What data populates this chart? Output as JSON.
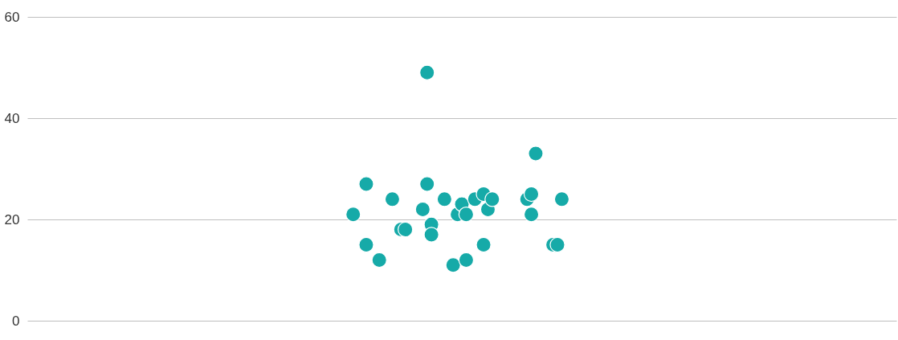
{
  "chart_data": {
    "type": "scatter",
    "categories": [
      null,
      null,
      null,
      null,
      null,
      null,
      null,
      null,
      null,
      null,
      null,
      null,
      null,
      null,
      null,
      null,
      null,
      null,
      null,
      null,
      null,
      null,
      null,
      null,
      null,
      null,
      null,
      null,
      null,
      null,
      null,
      null,
      null,
      null,
      null,
      null,
      null,
      null,
      null,
      null,
      null,
      null,
      null,
      null,
      null,
      null,
      null,
      null,
      null,
      null,
      null,
      null,
      null,
      null,
      null,
      null,
      null,
      null,
      null,
      null,
      null,
      null,
      null,
      null,
      null,
      null,
      null,
      null,
      null,
      null,
      null,
      null,
      null,
      null,
      null,
      null,
      null,
      null,
      null,
      null,
      null,
      null,
      null,
      null,
      null,
      null,
      null,
      null,
      null,
      null,
      null,
      null,
      null,
      null,
      null,
      null,
      null,
      null,
      null,
      null,
      null,
      null,
      null,
      null,
      null,
      null,
      null,
      null,
      null,
      null,
      null,
      null,
      null,
      null,
      null,
      null,
      null,
      null,
      null,
      null,
      null,
      null,
      null,
      null,
      null,
      null,
      null,
      null,
      null,
      null,
      null,
      null,
      null,
      null,
      null,
      null,
      null,
      null,
      null,
      null,
      null,
      null,
      null,
      null,
      null,
      null,
      null,
      null,
      null,
      null,
      null,
      null,
      null,
      null,
      null,
      null,
      null,
      null,
      null,
      null,
      null,
      null,
      null,
      null,
      null,
      null,
      null,
      null,
      null,
      null,
      null,
      null,
      null,
      null,
      null,
      null,
      null,
      null,
      null,
      null,
      null,
      null,
      null,
      null,
      null,
      null,
      null,
      null,
      null,
      null,
      null,
      null,
      null,
      null,
      null,
      null,
      null,
      null,
      null,
      null,
      null
    ],
    "series": [
      {
        "color": "#16aaa8",
        "values": [
          null,
          null,
          null,
          null,
          null,
          null,
          null,
          null,
          null,
          null,
          null,
          null,
          null,
          null,
          null,
          null,
          null,
          null,
          null,
          null,
          null,
          null,
          null,
          null,
          null,
          null,
          null,
          null,
          null,
          null,
          null,
          null,
          null,
          null,
          null,
          null,
          null,
          null,
          null,
          null,
          null,
          null,
          null,
          null,
          null,
          null,
          null,
          null,
          null,
          null,
          null,
          null,
          null,
          null,
          null,
          null,
          null,
          null,
          null,
          null,
          null,
          null,
          null,
          null,
          null,
          null,
          null,
          null,
          null,
          null,
          null,
          null,
          null,
          null,
          null,
          21,
          null,
          null,
          27,
          null,
          null,
          12,
          null,
          null,
          24,
          null,
          18,
          18,
          null,
          null,
          null,
          22,
          49,
          19,
          null,
          null,
          24,
          null,
          11,
          21,
          23,
          21,
          null,
          24,
          null,
          25,
          22,
          24,
          null,
          null,
          null,
          null,
          null,
          null,
          null,
          24,
          25,
          33,
          null,
          null,
          null,
          15,
          null,
          24,
          null,
          null,
          null,
          null,
          null,
          null,
          null,
          null,
          null,
          null,
          null,
          null,
          null,
          null,
          null,
          null,
          null,
          null,
          null,
          null,
          null,
          null,
          null,
          null,
          null,
          null,
          null,
          null,
          null,
          null,
          null,
          null,
          null,
          null,
          null,
          null,
          null,
          null,
          null,
          null,
          null,
          null,
          null,
          null,
          null,
          null,
          null,
          null,
          null,
          null,
          null,
          null,
          null,
          null,
          null,
          null,
          null,
          null,
          null,
          null,
          null,
          null,
          null,
          null,
          null,
          null,
          null,
          null,
          null,
          null,
          null,
          null,
          null,
          null,
          null,
          null,
          null
        ]
      },
      {
        "color": "#16aaa8",
        "values": [
          null,
          null,
          null,
          null,
          null,
          null,
          null,
          null,
          null,
          null,
          null,
          null,
          null,
          null,
          null,
          null,
          null,
          null,
          null,
          null,
          null,
          null,
          null,
          null,
          null,
          null,
          null,
          null,
          null,
          null,
          null,
          null,
          null,
          null,
          null,
          null,
          null,
          null,
          null,
          null,
          null,
          null,
          null,
          null,
          null,
          null,
          null,
          null,
          null,
          null,
          null,
          null,
          null,
          null,
          null,
          null,
          null,
          null,
          null,
          null,
          null,
          null,
          null,
          null,
          null,
          null,
          null,
          null,
          null,
          null,
          null,
          null,
          null,
          null,
          null,
          null,
          null,
          null,
          15,
          null,
          null,
          null,
          null,
          null,
          null,
          null,
          null,
          null,
          null,
          null,
          null,
          null,
          27,
          17,
          null,
          null,
          null,
          null,
          null,
          null,
          null,
          12,
          null,
          null,
          null,
          15,
          null,
          null,
          null,
          null,
          null,
          null,
          null,
          null,
          null,
          null,
          21,
          null,
          null,
          null,
          null,
          null,
          15,
          null,
          null,
          null,
          null,
          null,
          null,
          null,
          null,
          null,
          null,
          null,
          null,
          null,
          null,
          null,
          null,
          null,
          null,
          null,
          null,
          null,
          null,
          null,
          null,
          null,
          null,
          null,
          null,
          null,
          null,
          null,
          null,
          null,
          null,
          null,
          null,
          null,
          null,
          null,
          null,
          null,
          null,
          null,
          null,
          null,
          null,
          null,
          null,
          null,
          null,
          null,
          null,
          null,
          null,
          null,
          null,
          null,
          null,
          null,
          null,
          null,
          null,
          null,
          null,
          null,
          null,
          null,
          null,
          null,
          null,
          null,
          null,
          null,
          null,
          null,
          null,
          null,
          null
        ]
      }
    ],
    "ylim": [
      0,
      60
    ],
    "yticks": [
      0,
      20,
      40,
      60
    ],
    "grid": "y",
    "tick_labels": "y",
    "marker": "circle"
  }
}
